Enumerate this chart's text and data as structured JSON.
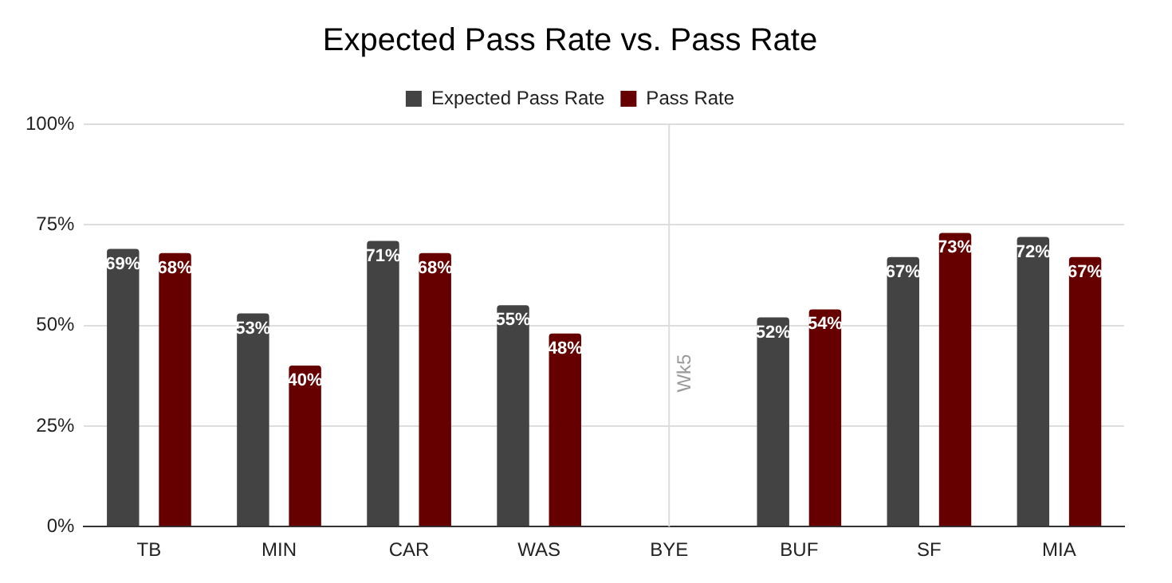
{
  "chart_data": {
    "type": "bar",
    "title": "Expected Pass Rate vs. Pass Rate",
    "categories": [
      "TB",
      "MIN",
      "CAR",
      "WAS",
      "BYE",
      "BUF",
      "SF",
      "MIA"
    ],
    "series": [
      {
        "name": "Expected Pass Rate",
        "color": "#434343",
        "values": [
          69,
          53,
          71,
          55,
          null,
          52,
          67,
          72
        ],
        "value_labels": [
          "69%",
          "53%",
          "71%",
          "55%",
          null,
          "52%",
          "67%",
          "72%"
        ]
      },
      {
        "name": "Pass Rate",
        "color": "#660000",
        "values": [
          68,
          40,
          68,
          48,
          null,
          54,
          73,
          67
        ],
        "value_labels": [
          "68%",
          "40%",
          "68%",
          "48%",
          null,
          "54%",
          "73%",
          "67%"
        ]
      }
    ],
    "ylim": [
      0,
      100
    ],
    "yticks": [
      {
        "value": 0,
        "label": "0%"
      },
      {
        "value": 25,
        "label": "25%"
      },
      {
        "value": 50,
        "label": "50%"
      },
      {
        "value": 75,
        "label": "75%"
      },
      {
        "value": 100,
        "label": "100%"
      }
    ],
    "ref_lines": [
      {
        "axis": "x",
        "value": "BYE",
        "label": "Wk5",
        "color": "#dddddd"
      }
    ],
    "grid": "y",
    "legend": "top"
  }
}
